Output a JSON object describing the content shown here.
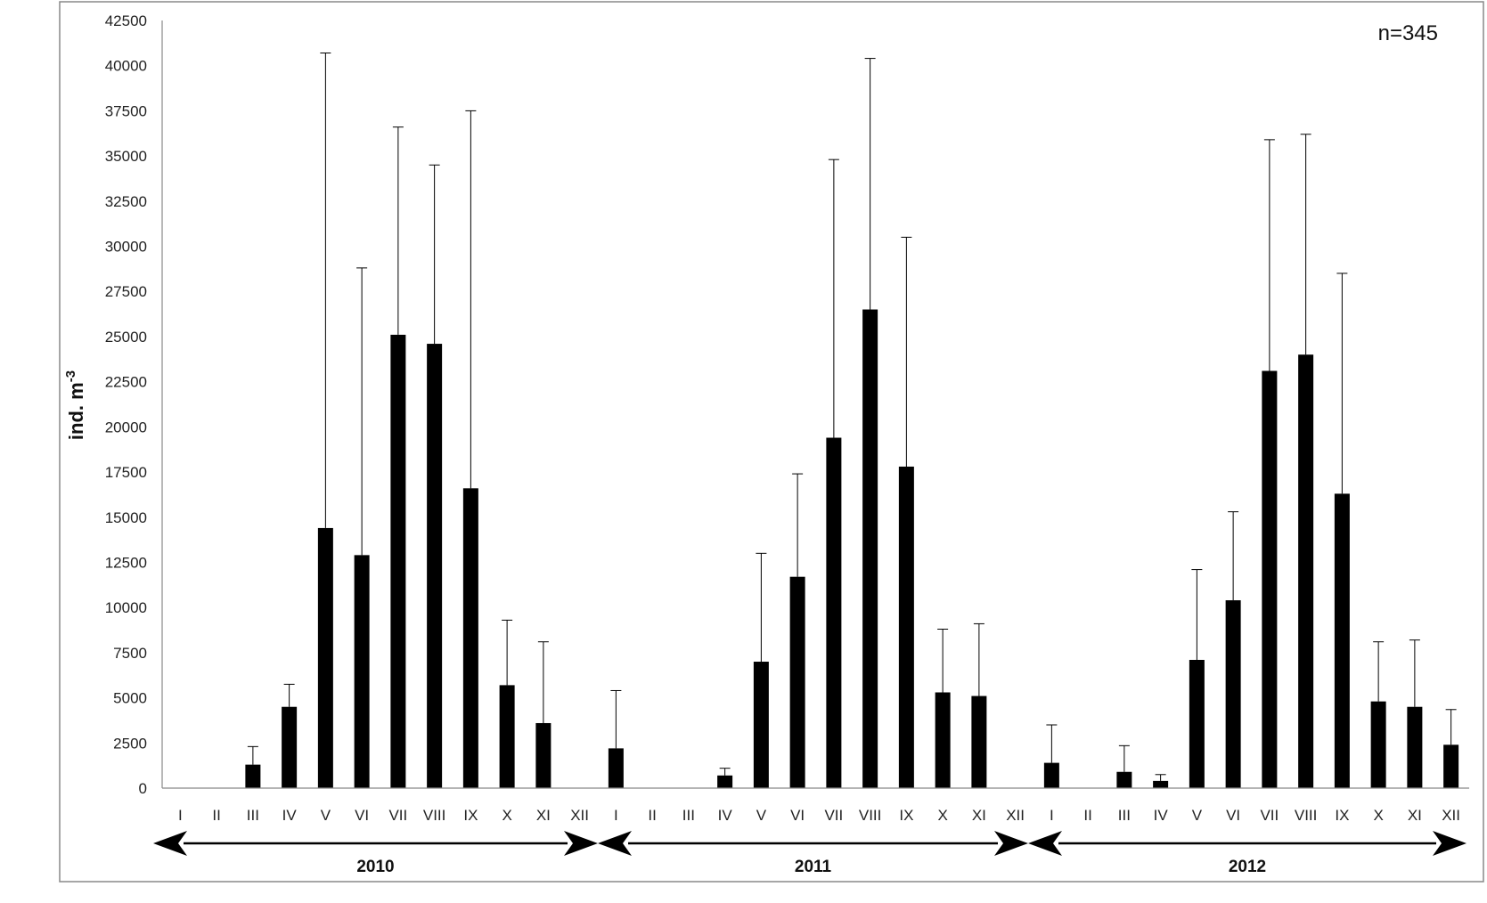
{
  "chart_data": {
    "type": "bar",
    "ylabel": "ind. m",
    "ylabel_superscript": "-3",
    "annotation": "n=345",
    "ylim": [
      0,
      42500
    ],
    "yticks": [
      "0",
      "2500",
      "5000",
      "7500",
      "10000",
      "12500",
      "15000",
      "17500",
      "20000",
      "22500",
      "25000",
      "27500",
      "30000",
      "32500",
      "35000",
      "37500",
      "40000",
      "42500"
    ],
    "grid": false,
    "error_bars": true,
    "colors": {
      "bar": "#000000",
      "axis": "#888888",
      "frame": "#888888"
    },
    "years": [
      {
        "label": "2010",
        "months": [
          "I",
          "II",
          "III",
          "IV",
          "V",
          "VI",
          "VII",
          "VIII",
          "IX",
          "X",
          "XI",
          "XII"
        ],
        "values": [
          0,
          0,
          1300,
          4500,
          14400,
          12900,
          25100,
          24600,
          16600,
          5700,
          3600,
          0
        ],
        "errors": [
          0,
          0,
          1000,
          1250,
          26300,
          15900,
          11500,
          9900,
          20900,
          3600,
          4500,
          0
        ]
      },
      {
        "label": "2011",
        "months": [
          "I",
          "II",
          "III",
          "IV",
          "V",
          "VI",
          "VII",
          "VIII",
          "IX",
          "X",
          "XI",
          "XII"
        ],
        "values": [
          2200,
          0,
          0,
          700,
          7000,
          11700,
          19400,
          26500,
          17800,
          5300,
          5100,
          0
        ],
        "errors": [
          3200,
          0,
          0,
          400,
          6000,
          5700,
          15400,
          13900,
          12700,
          3500,
          4000,
          0
        ]
      },
      {
        "label": "2012",
        "months": [
          "I",
          "II",
          "III",
          "IV",
          "V",
          "VI",
          "VII",
          "VIII",
          "IX",
          "X",
          "XI",
          "XII"
        ],
        "values": [
          1400,
          0,
          900,
          400,
          7100,
          10400,
          23100,
          24000,
          16300,
          4800,
          4500,
          2400
        ],
        "errors": [
          2100,
          0,
          1450,
          350,
          5000,
          4900,
          12800,
          12200,
          12200,
          3300,
          3700,
          1950
        ]
      }
    ]
  }
}
